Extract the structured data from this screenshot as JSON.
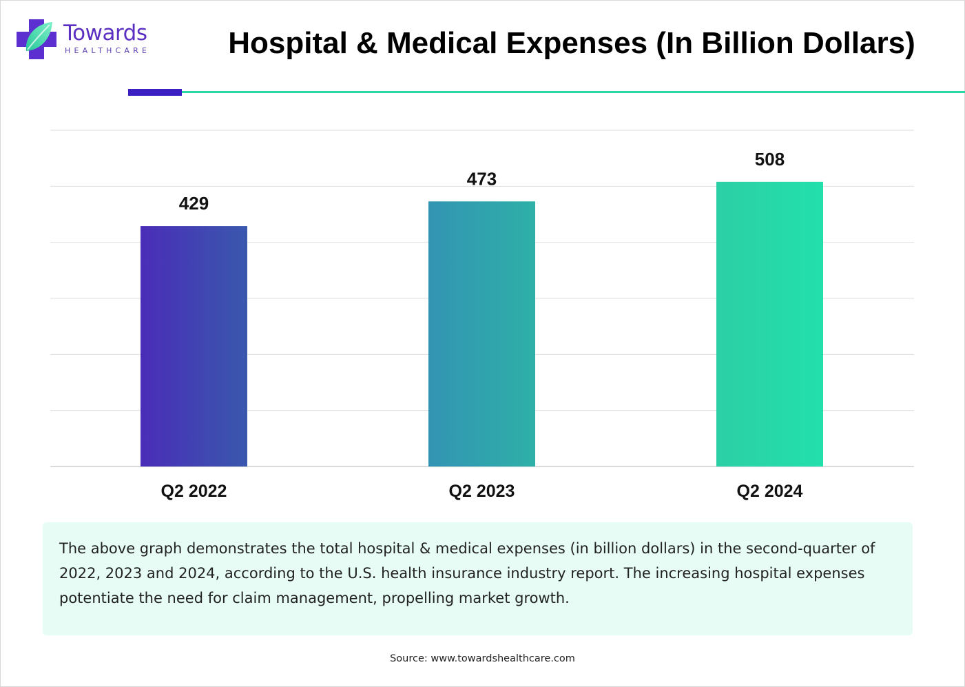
{
  "brand": {
    "name": "Towards",
    "subtitle": "HEALTHCARE",
    "colors": {
      "primary": "#5a2fc2",
      "accent": "#2fd6a6"
    }
  },
  "header": {
    "title": "Hospital & Medical Expenses (In Billion Dollars)"
  },
  "chart_data": {
    "type": "bar",
    "title": "Hospital & Medical Expenses (In Billion Dollars)",
    "categories": [
      "Q2 2022",
      "Q2 2023",
      "Q2 2024"
    ],
    "values": [
      429,
      473,
      508
    ],
    "data_labels": [
      "429",
      "473",
      "508"
    ],
    "xlabel": "",
    "ylabel": "",
    "ylim": [
      0,
      600
    ],
    "grid": true,
    "legend": "none",
    "bar_colors": [
      {
        "from": "#4a2db8",
        "to": "#3a58ad"
      },
      {
        "from": "#3394b3",
        "to": "#2eb0a8"
      },
      {
        "from": "#2ccfa5",
        "to": "#22e0ab"
      }
    ]
  },
  "note": {
    "text": "The above graph demonstrates the total hospital & medical expenses (in billion dollars) in the second-quarter of 2022, 2023 and 2024, according to the U.S. health insurance industry report. The increasing hospital expenses potentiate the need for claim management, propelling market growth."
  },
  "footer": {
    "source": "Source: www.towardshealthcare.com"
  }
}
